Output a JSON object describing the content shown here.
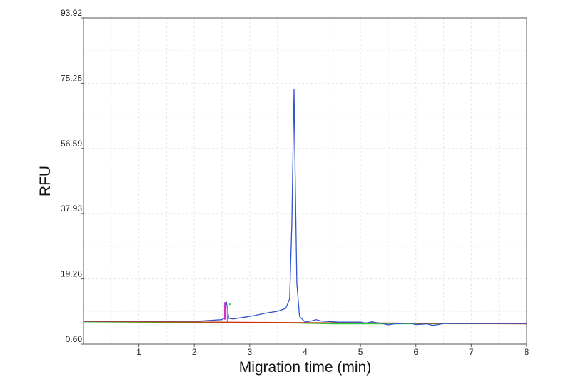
{
  "chart_data": {
    "type": "line",
    "title": "",
    "xlabel": "Migration time (min)",
    "ylabel": "RFU",
    "xlim": [
      0,
      8
    ],
    "ylim": [
      0.6,
      93.92
    ],
    "x_ticks": [
      1,
      2,
      3,
      4,
      5,
      6,
      7,
      8
    ],
    "x_tick_labels": [
      "1",
      "2",
      "3",
      "4",
      "5",
      "6",
      "7",
      "8"
    ],
    "y_ticks": [
      0.6,
      19.26,
      37.93,
      56.59,
      75.25,
      93.92
    ],
    "y_tick_labels": [
      "0.60",
      "19.26",
      "37.93",
      "56.59",
      "75.25",
      "93.92"
    ],
    "grid": true,
    "series": [
      {
        "color": "#3355cc",
        "x": [
          0,
          2.1,
          2.5,
          2.55,
          2.57,
          2.58,
          2.62,
          2.7,
          2.9,
          3.1,
          3.3,
          3.5,
          3.65,
          3.72,
          3.76,
          3.79,
          3.8,
          3.82,
          3.85,
          3.9,
          4.0,
          4.1,
          4.2,
          4.3,
          4.6,
          5.0,
          5.1,
          5.2,
          5.3,
          5.4,
          5.5,
          5.6,
          5.9,
          6.0,
          6.2,
          6.3,
          6.4,
          6.5,
          7.0,
          8.0
        ],
        "y": [
          7.2,
          7.2,
          7.6,
          8.2,
          12.5,
          12.6,
          8.0,
          7.8,
          8.3,
          8.8,
          9.5,
          10.0,
          10.8,
          13.5,
          35.0,
          64.0,
          73.5,
          50.0,
          18.0,
          8.5,
          6.9,
          7.2,
          7.6,
          7.2,
          6.9,
          6.9,
          6.6,
          7.0,
          6.7,
          6.5,
          6.1,
          6.4,
          6.6,
          6.2,
          6.4,
          6.0,
          6.2,
          6.5,
          6.5,
          6.5
        ]
      },
      {
        "color": "#cc3300",
        "x": [
          0,
          8
        ],
        "y": [
          7.1,
          6.4
        ]
      },
      {
        "color": "#33cc33",
        "x": [
          0,
          3.0,
          3.3,
          3.9,
          4.5,
          8
        ],
        "y": [
          7.0,
          6.7,
          6.8,
          6.6,
          6.4,
          6.5
        ]
      }
    ],
    "annotations": [
      {
        "x": 2.55,
        "y_top": 12.6,
        "y_bottom": 7.6,
        "color": "#cc33cc"
      },
      {
        "x": 2.6,
        "y_top": 11.5,
        "y_bottom": 7.0,
        "color": "#ff44cc"
      },
      {
        "x": 2.64,
        "y_top": 12.2,
        "y_bottom": 11.8,
        "color": "#33cc33"
      }
    ]
  }
}
